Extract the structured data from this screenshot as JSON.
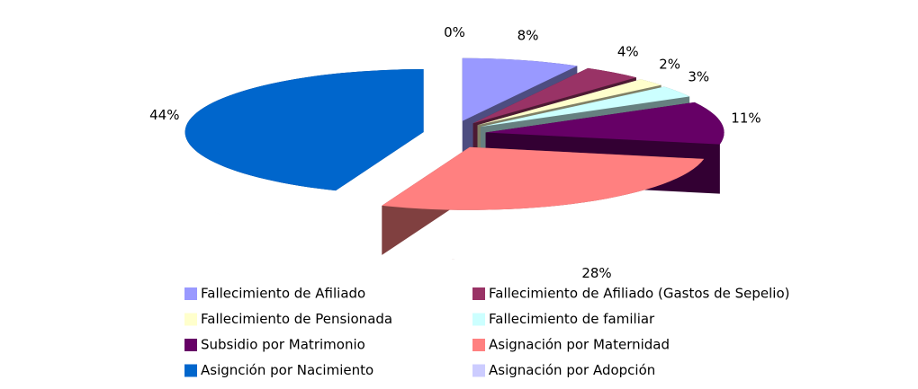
{
  "chart_data": {
    "type": "pie3d",
    "categories": [
      "Fallecimiento de Afiliado",
      "Fallecimiento de Afiliado (Gastos de Sepelio)",
      "Fallecimiento de Pensionada",
      "Fallecimiento de familiar",
      "Subsidio por Matrimonio",
      "Asignación por Maternidad",
      "Asignción por Nacimiento",
      "Asignación por Adopción"
    ],
    "values": [
      8,
      4,
      2,
      3,
      11,
      28,
      44,
      0
    ],
    "value_labels": [
      "8%",
      "4%",
      "2%",
      "3%",
      "11%",
      "28%",
      "44%",
      "0%"
    ],
    "colors": [
      "#9999FF",
      "#993366",
      "#FFFFCC",
      "#CCFFFF",
      "#660066",
      "#FF8080",
      "#0066CC",
      "#CCCCFF"
    ],
    "legend": "bottom"
  }
}
